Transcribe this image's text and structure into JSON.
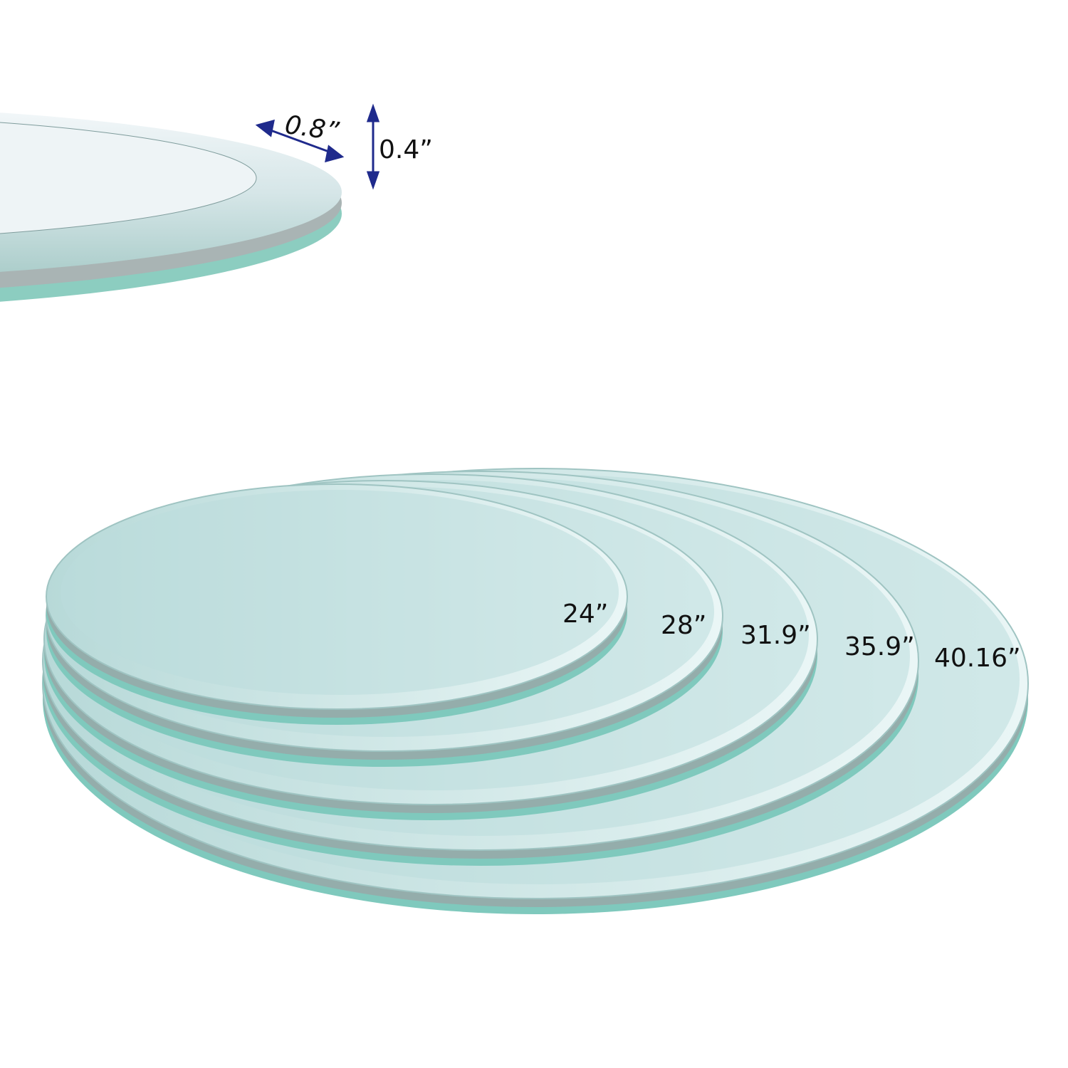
{
  "edge_detail": {
    "bevel_width": "0.8”",
    "thickness": "0.4”",
    "arrow_color": "#1f2a8c"
  },
  "sizes": [
    {
      "label": "24”"
    },
    {
      "label": "28”"
    },
    {
      "label": "31.9”"
    },
    {
      "label": "35.9”"
    },
    {
      "label": "40.16”"
    }
  ],
  "colors": {
    "glass_face": "#bcdcdc",
    "glass_edge": "#7fc9bd",
    "bevel": "#9aa6a6"
  }
}
